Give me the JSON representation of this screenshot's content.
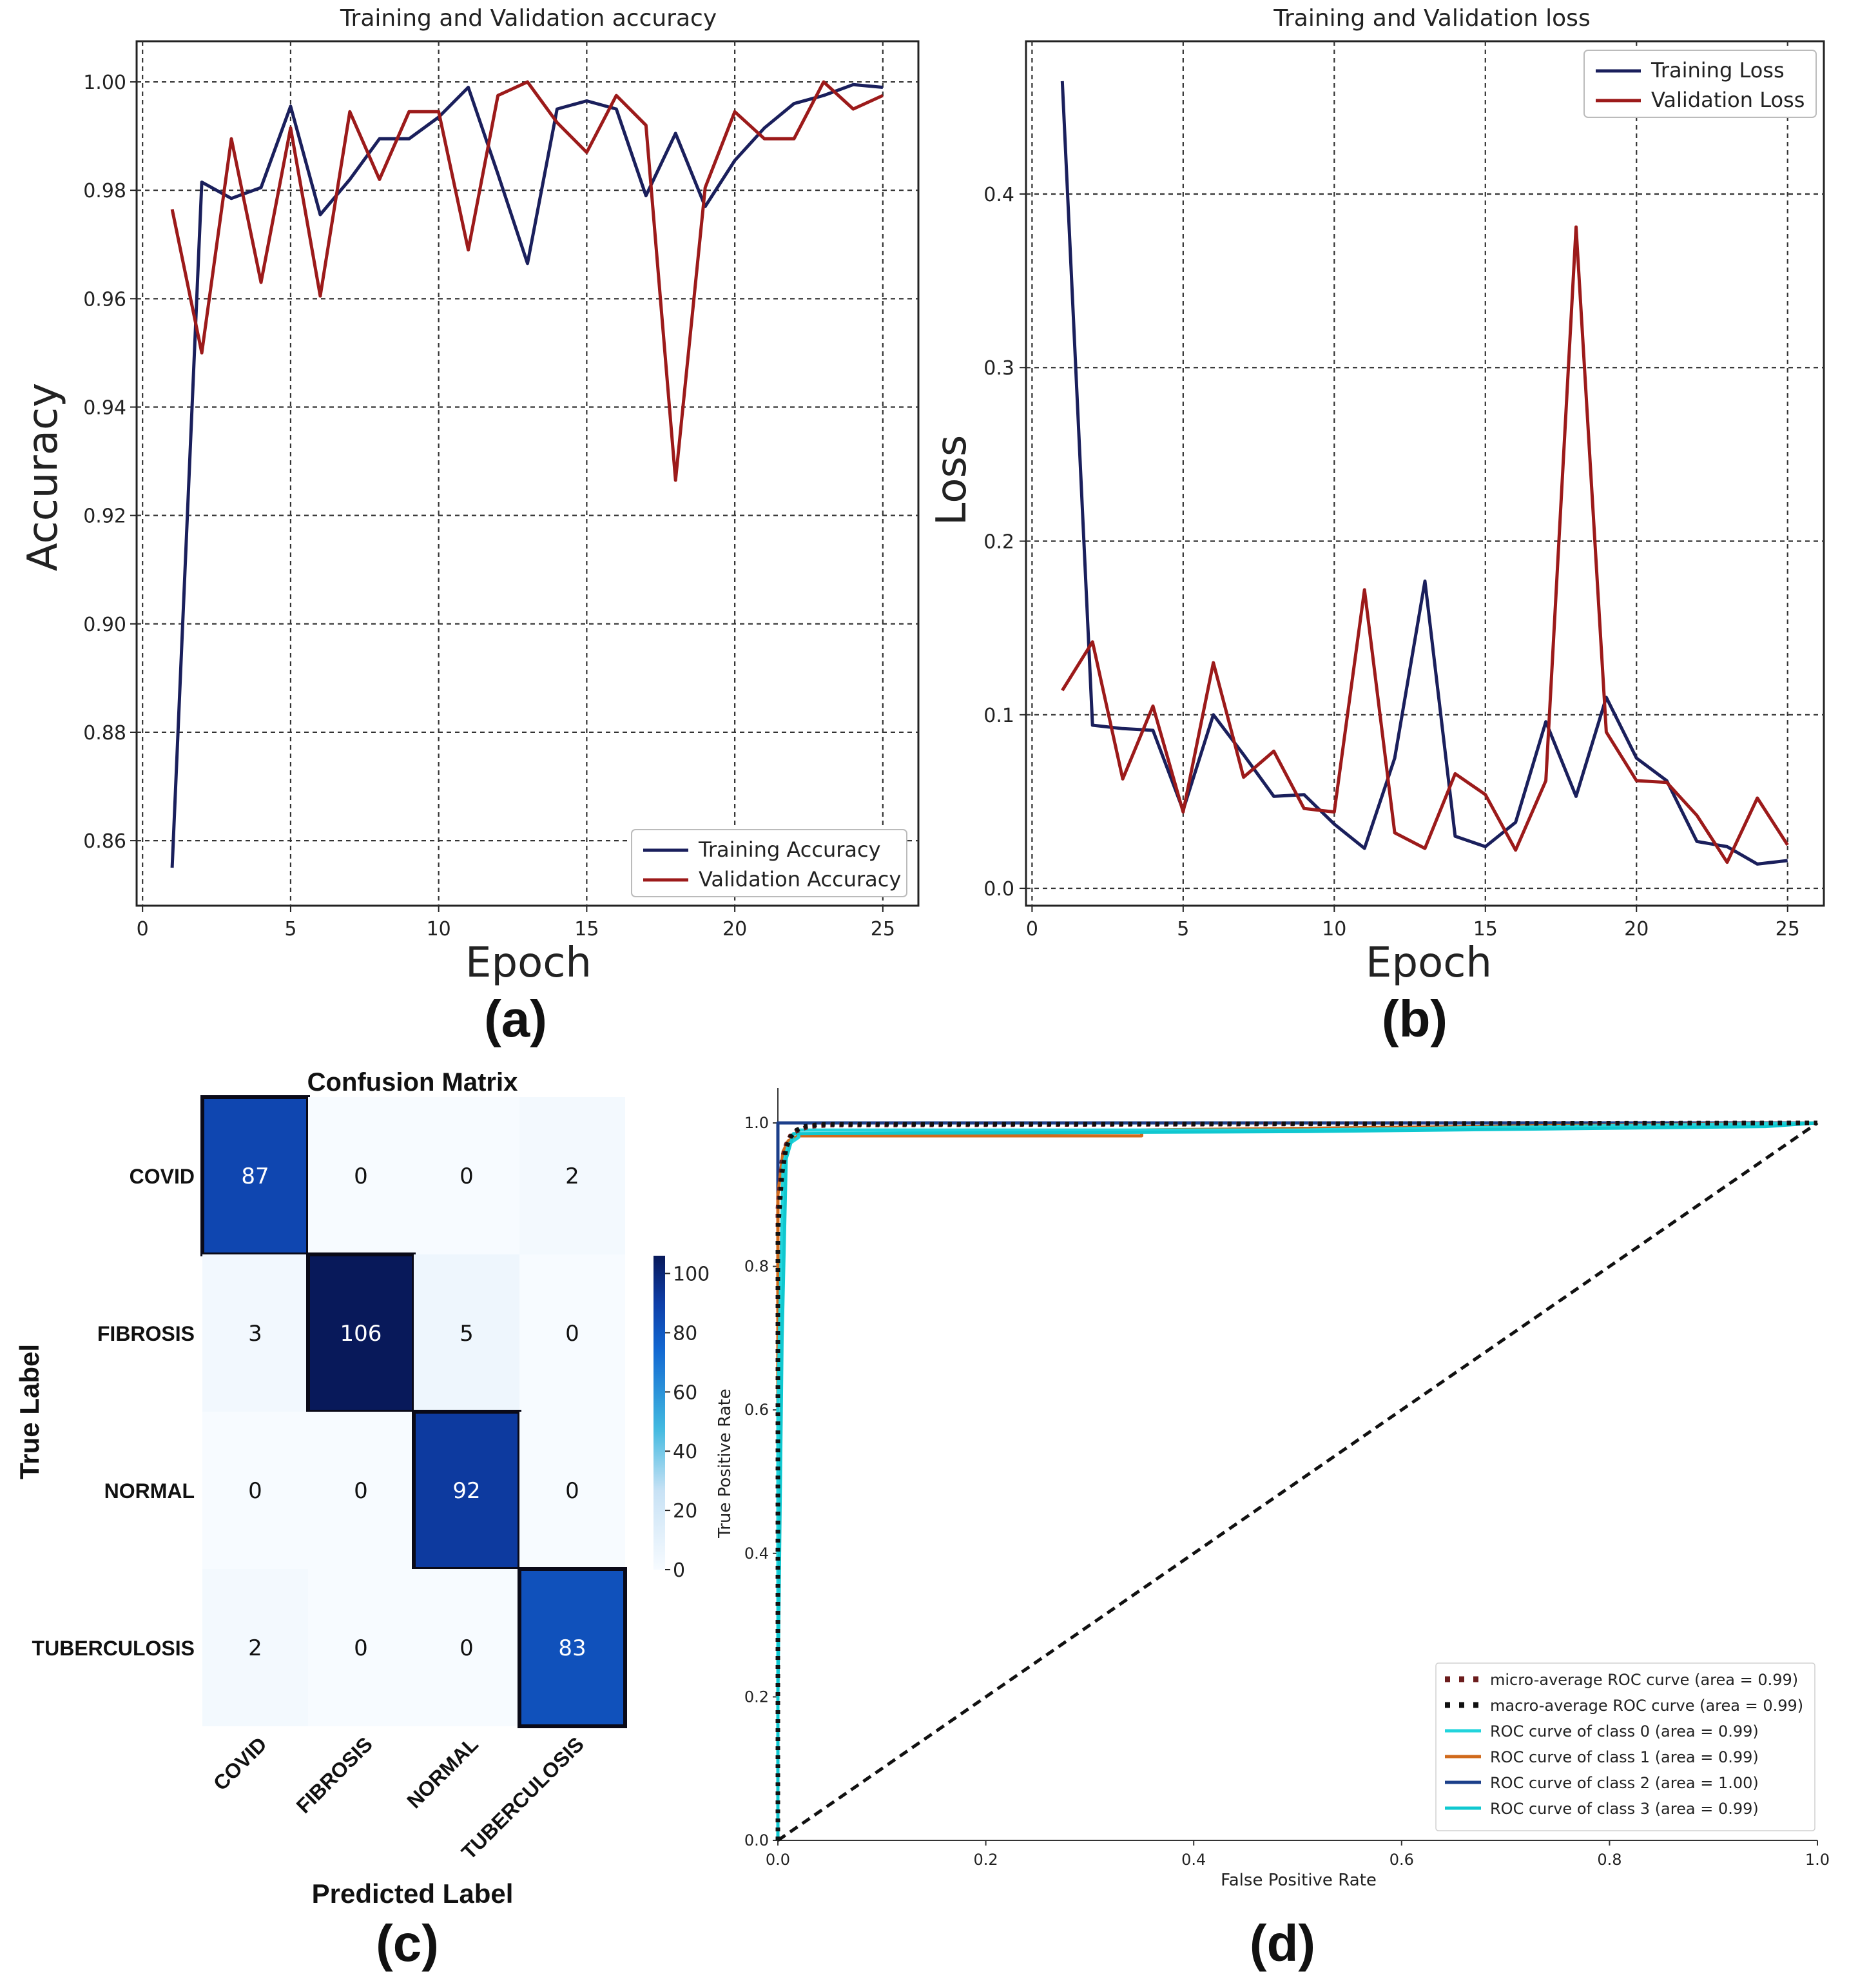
{
  "figure": {
    "panel_labels": [
      "(a)",
      "(b)",
      "(c)",
      "(d)"
    ]
  },
  "colors": {
    "train": "#1a1f5c",
    "val": "#9c1a1a",
    "grid": "#333333",
    "diag": "#111111",
    "roc0": "#22d4dc",
    "roc1": "#d06a1c",
    "roc2": "#1c3f8a",
    "roc3": "#10c8d0",
    "micro": "#6b1c1c",
    "macro": "#111111"
  },
  "chart_data": [
    {
      "id": "a",
      "type": "line",
      "title": "Training and Validation accuracy",
      "xlabel": "Epoch",
      "ylabel": "Accuracy",
      "xlim": [
        -0.2,
        26.2
      ],
      "ylim": [
        0.848,
        1.0075
      ],
      "xticks": [
        0,
        5,
        10,
        15,
        20,
        25
      ],
      "yticks": [
        0.86,
        0.88,
        0.9,
        0.92,
        0.94,
        0.96,
        0.98,
        1.0
      ],
      "ytick_labels": [
        "0.86",
        "0.88",
        "0.90",
        "0.92",
        "0.94",
        "0.96",
        "0.98",
        "1.00"
      ],
      "grid": true,
      "legend": "bottom-right",
      "x": [
        1,
        2,
        3,
        4,
        5,
        6,
        7,
        8,
        9,
        10,
        11,
        12,
        13,
        14,
        15,
        16,
        17,
        18,
        19,
        20,
        21,
        22,
        23,
        24,
        25
      ],
      "series": [
        {
          "name": "Training Accuracy",
          "color_key": "train",
          "values": [
            0.855,
            0.9815,
            0.9785,
            0.9805,
            0.9955,
            0.9755,
            0.982,
            0.9895,
            0.9895,
            0.9935,
            0.999,
            0.983,
            0.9665,
            0.995,
            0.9965,
            0.995,
            0.979,
            0.9905,
            0.977,
            0.9855,
            0.9915,
            0.996,
            0.9975,
            0.9995,
            0.999
          ]
        },
        {
          "name": "Validation Accuracy",
          "color_key": "val",
          "values": [
            0.9765,
            0.95,
            0.9895,
            0.963,
            0.9915,
            0.9605,
            0.9945,
            0.982,
            0.9945,
            0.9945,
            0.969,
            0.9975,
            1.0,
            0.9925,
            0.987,
            0.9975,
            0.992,
            0.9265,
            0.9805,
            0.9945,
            0.9895,
            0.9895,
            1.0,
            0.995,
            0.9975
          ]
        }
      ]
    },
    {
      "id": "b",
      "type": "line",
      "title": "Training and Validation loss",
      "xlabel": "Epoch",
      "ylabel": "Loss",
      "xlim": [
        -0.2,
        26.2
      ],
      "ylim": [
        -0.01,
        0.488
      ],
      "xticks": [
        0,
        5,
        10,
        15,
        20,
        25
      ],
      "yticks": [
        0.0,
        0.1,
        0.2,
        0.3,
        0.4
      ],
      "ytick_labels": [
        "0.0",
        "0.1",
        "0.2",
        "0.3",
        "0.4"
      ],
      "grid": true,
      "legend": "top-right",
      "x": [
        1,
        2,
        3,
        4,
        5,
        6,
        7,
        8,
        9,
        10,
        11,
        12,
        13,
        14,
        15,
        16,
        17,
        18,
        19,
        20,
        21,
        22,
        23,
        24,
        25
      ],
      "series": [
        {
          "name": "Training Loss",
          "color_key": "train",
          "values": [
            0.465,
            0.094,
            0.092,
            0.091,
            0.045,
            0.1,
            0.077,
            0.053,
            0.054,
            0.037,
            0.023,
            0.075,
            0.177,
            0.03,
            0.024,
            0.038,
            0.096,
            0.053,
            0.11,
            0.075,
            0.062,
            0.027,
            0.024,
            0.014,
            0.016
          ]
        },
        {
          "name": "Validation Loss",
          "color_key": "val",
          "values": [
            0.114,
            0.142,
            0.063,
            0.105,
            0.044,
            0.13,
            0.064,
            0.079,
            0.046,
            0.044,
            0.172,
            0.032,
            0.023,
            0.066,
            0.054,
            0.022,
            0.062,
            0.381,
            0.09,
            0.062,
            0.061,
            0.042,
            0.015,
            0.052,
            0.025
          ]
        }
      ]
    },
    {
      "id": "c",
      "type": "heatmap",
      "title": "Confusion Matrix",
      "xlabel": "Predicted Label",
      "ylabel": "True Label",
      "labels": [
        "COVID",
        "FIBROSIS",
        "NORMAL",
        "TUBERCULOSIS"
      ],
      "matrix": [
        [
          87,
          0,
          0,
          2
        ],
        [
          3,
          106,
          5,
          0
        ],
        [
          0,
          0,
          92,
          0
        ],
        [
          2,
          0,
          0,
          83
        ]
      ],
      "vmin": 0,
      "vmax": 106,
      "colorbar_ticks": [
        0,
        20,
        40,
        60,
        80,
        100
      ]
    },
    {
      "id": "d",
      "type": "line",
      "title": "",
      "xlabel": "False Positive Rate",
      "ylabel": "True Positive Rate",
      "xlim": [
        0.0,
        1.0
      ],
      "ylim": [
        0.0,
        1.0
      ],
      "xticks": [
        0.0,
        0.2,
        0.4,
        0.6,
        0.8,
        1.0
      ],
      "xtick_labels": [
        "0.0",
        "0.2",
        "0.4",
        "0.6",
        "0.8",
        "1.0"
      ],
      "yticks": [
        0.0,
        0.2,
        0.4,
        0.6,
        0.8,
        1.0
      ],
      "ytick_labels": [
        "0.0",
        "0.2",
        "0.4",
        "0.6",
        "0.8",
        "1.0"
      ],
      "grid": false,
      "legend": "bottom-right",
      "series": [
        {
          "name": "micro-average ROC curve (area = 0.99)",
          "color_key": "micro",
          "style": "dotted",
          "x": [
            0,
            0,
            0.004,
            0.008,
            0.013,
            0.02,
            0.03,
            0.05,
            1.0
          ],
          "y": [
            0,
            0.88,
            0.95,
            0.97,
            0.985,
            0.99,
            0.995,
            0.997,
            1.0
          ]
        },
        {
          "name": "macro-average ROC curve (area = 0.99)",
          "color_key": "macro",
          "style": "dotted",
          "x": [
            0,
            0,
            0.004,
            0.008,
            0.012,
            0.018,
            0.025,
            0.04,
            1.0
          ],
          "y": [
            0,
            0.85,
            0.93,
            0.965,
            0.98,
            0.99,
            0.995,
            0.998,
            1.0
          ]
        },
        {
          "name": "ROC curve of class 0 (area = 0.99)",
          "color_key": "roc0",
          "style": "solid",
          "x": [
            0,
            0,
            0.005,
            0.01,
            0.02,
            0.02,
            0.5,
            1.0
          ],
          "y": [
            0,
            0.6,
            0.94,
            0.97,
            0.98,
            0.99,
            0.99,
            1.0
          ]
        },
        {
          "name": "ROC curve of class 1 (area = 0.99)",
          "color_key": "roc1",
          "style": "solid",
          "x": [
            0,
            0,
            0.005,
            0.01,
            0.02,
            0.35,
            0.35,
            1.0
          ],
          "y": [
            0,
            0.9,
            0.96,
            0.975,
            0.982,
            0.982,
            0.99,
            1.0
          ]
        },
        {
          "name": "ROC curve of class 2 (area = 1.00)",
          "color_key": "roc2",
          "style": "solid",
          "x": [
            0,
            0,
            0.01,
            1.0
          ],
          "y": [
            0,
            1.0,
            1.0,
            1.0
          ]
        },
        {
          "name": "ROC curve of class 3 (area = 0.99)",
          "color_key": "roc3",
          "style": "solid",
          "x": [
            0,
            0,
            0.004,
            0.008,
            0.015,
            0.5,
            0.95,
            1.0
          ],
          "y": [
            0,
            0.2,
            0.7,
            0.95,
            0.985,
            0.988,
            0.995,
            1.0
          ]
        }
      ],
      "reference_line": {
        "x": [
          0,
          1
        ],
        "y": [
          0,
          1
        ]
      }
    }
  ]
}
